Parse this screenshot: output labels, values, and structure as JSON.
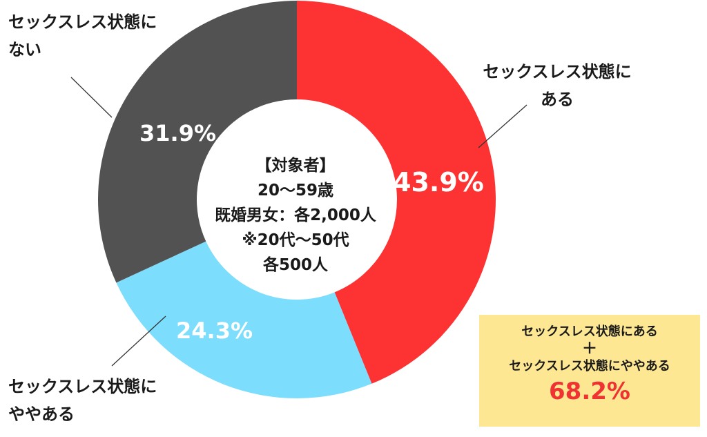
{
  "chart_data": {
    "type": "donut",
    "segments": [
      {
        "label_lines": [
          "セックスレス状態に",
          "ある"
        ],
        "value": 43.9,
        "display": "43.9%",
        "color": "#fd3233"
      },
      {
        "label_lines": [
          "セックスレス状態に",
          "ややある"
        ],
        "value": 24.3,
        "display": "24.3%",
        "color": "#7cddfc"
      },
      {
        "label_lines": [
          "セックスレス状態に",
          "ない"
        ],
        "value": 31.9,
        "display": "31.9%",
        "color": "#525252"
      }
    ],
    "center_lines": [
      "【対象者】",
      "20〜59歳",
      "既婚男女：各2,000人",
      "※20代〜50代",
      "各500人"
    ],
    "summary": {
      "line1": "セックスレス状態にある",
      "plus": "＋",
      "line2": "セックスレス状態にややある",
      "total": "68.2%",
      "background": "#fde793",
      "total_color": "#ee3332"
    }
  }
}
